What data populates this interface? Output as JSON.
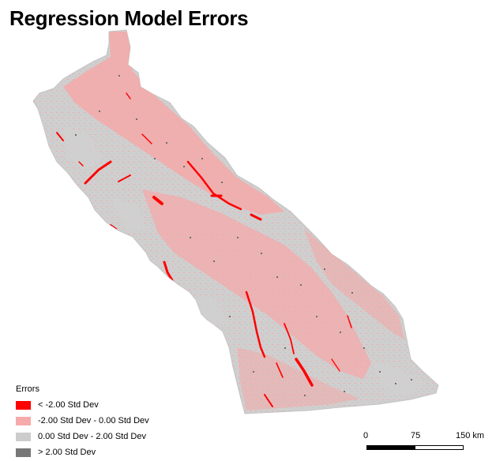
{
  "title": "Regression Model Errors",
  "legend": {
    "title": "Errors",
    "items": [
      {
        "label": "<  -2.00 Std Dev",
        "color": "#ff0000"
      },
      {
        "label": "-2.00 Std Dev -  0.00 Std Dev",
        "color": "#f6aaaa"
      },
      {
        "label": "0.00 Std Dev -  2.00 Std Dev",
        "color": "#cccccc"
      },
      {
        "label": ">  2.00 Std Dev",
        "color": "#777777"
      }
    ]
  },
  "scalebar": {
    "labels": [
      "0",
      "75",
      "150 km"
    ]
  },
  "colors": {
    "region_fill": "#cfcfcf",
    "pink": "#f4a9a9",
    "red": "#ff0000",
    "dark": "#6e6e6e"
  }
}
